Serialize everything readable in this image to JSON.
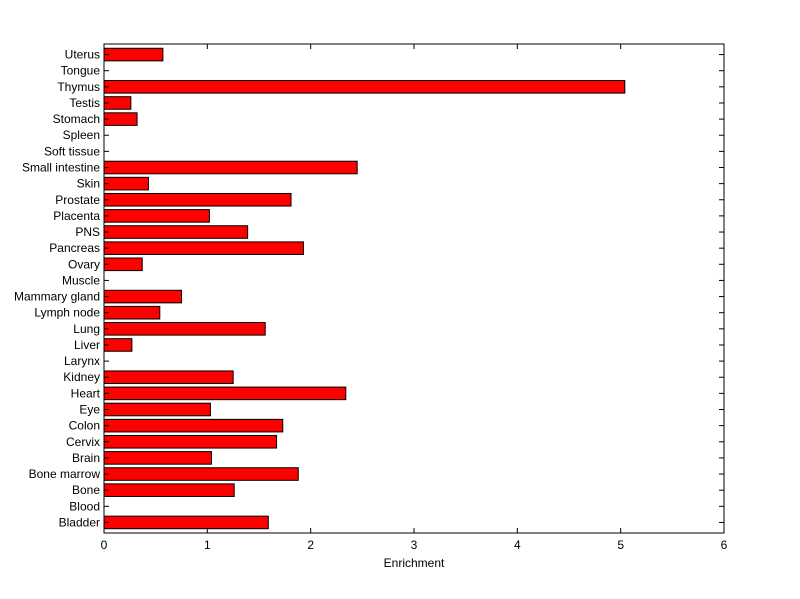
{
  "chart_data": {
    "type": "bar",
    "orientation": "horizontal",
    "categories": [
      "Uterus",
      "Tongue",
      "Thymus",
      "Testis",
      "Stomach",
      "Spleen",
      "Soft tissue",
      "Small intestine",
      "Skin",
      "Prostate",
      "Placenta",
      "PNS",
      "Pancreas",
      "Ovary",
      "Muscle",
      "Mammary gland",
      "Lymph node",
      "Lung",
      "Liver",
      "Larynx",
      "Kidney",
      "Heart",
      "Eye",
      "Colon",
      "Cervix",
      "Brain",
      "Bone marrow",
      "Bone",
      "Blood",
      "Bladder"
    ],
    "values": [
      0.57,
      0,
      5.04,
      0.26,
      0.32,
      0,
      0,
      2.45,
      0.43,
      1.81,
      1.02,
      1.39,
      1.93,
      0.37,
      0,
      0.75,
      0.54,
      1.56,
      0.27,
      0,
      1.25,
      2.34,
      1.03,
      1.73,
      1.67,
      1.04,
      1.88,
      1.26,
      0,
      1.59
    ],
    "xlabel": "Enrichment",
    "ylabel": "",
    "xlim": [
      0,
      6
    ],
    "xticks": [
      "0",
      "1",
      "2",
      "3",
      "4",
      "5",
      "6"
    ],
    "grid": false,
    "bar_color": "#ff0000",
    "edge_color": "#000000"
  }
}
